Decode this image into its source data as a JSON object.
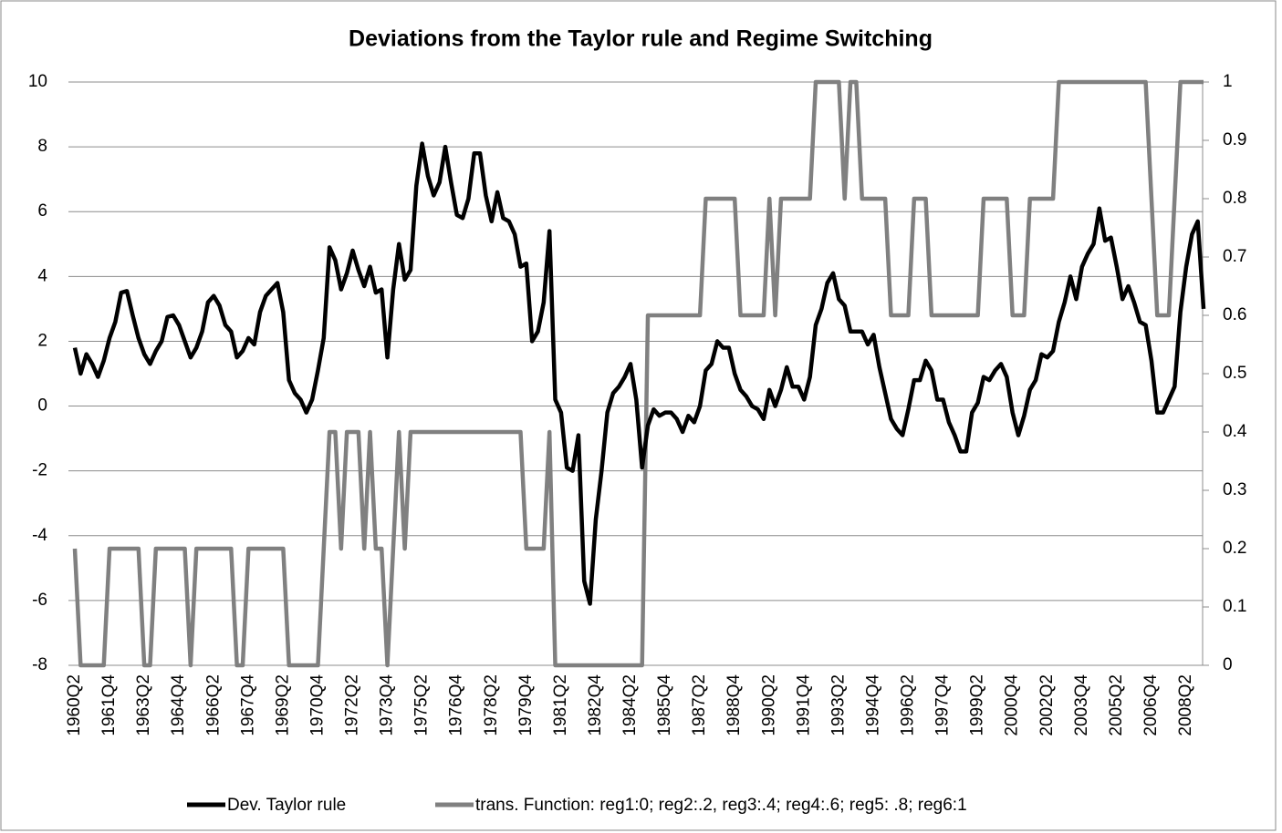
{
  "chart_data": {
    "type": "line",
    "title": "Deviations from the Taylor rule and Regime Switching",
    "categories": [
      "1960Q2",
      null,
      null,
      null,
      null,
      null,
      "1961Q4",
      null,
      null,
      null,
      null,
      null,
      "1963Q2",
      null,
      null,
      null,
      null,
      null,
      "1964Q4",
      null,
      null,
      null,
      null,
      null,
      "1966Q2",
      null,
      null,
      null,
      null,
      null,
      "1967Q4",
      null,
      null,
      null,
      null,
      null,
      "1969Q2",
      null,
      null,
      null,
      null,
      null,
      "1970Q4",
      null,
      null,
      null,
      null,
      null,
      "1972Q2",
      null,
      null,
      null,
      null,
      null,
      "1973Q4",
      null,
      null,
      null,
      null,
      null,
      "1975Q2",
      null,
      null,
      null,
      null,
      null,
      "1976Q4",
      null,
      null,
      null,
      null,
      null,
      "1978Q2",
      null,
      null,
      null,
      null,
      null,
      "1979Q4",
      null,
      null,
      null,
      null,
      null,
      "1981Q2",
      null,
      null,
      null,
      null,
      null,
      "1982Q4",
      null,
      null,
      null,
      null,
      null,
      "1984Q2",
      null,
      null,
      null,
      null,
      null,
      "1985Q4",
      null,
      null,
      null,
      null,
      null,
      "1987Q2",
      null,
      null,
      null,
      null,
      null,
      "1988Q4",
      null,
      null,
      null,
      null,
      null,
      "1990Q2",
      null,
      null,
      null,
      null,
      null,
      "1991Q4",
      null,
      null,
      null,
      null,
      null,
      "1993Q2",
      null,
      null,
      null,
      null,
      null,
      "1994Q4",
      null,
      null,
      null,
      null,
      null,
      "1996Q2",
      null,
      null,
      null,
      null,
      null,
      "1997Q4",
      null,
      null,
      null,
      null,
      null,
      "1999Q2",
      null,
      null,
      null,
      null,
      null,
      "2000Q4",
      null,
      null,
      null,
      null,
      null,
      "2002Q2",
      null,
      null,
      null,
      null,
      null,
      "2003Q4",
      null,
      null,
      null,
      null,
      null,
      "2005Q2",
      null,
      null,
      null,
      null,
      null,
      "2006Q4",
      null,
      null,
      null,
      null,
      null,
      "2008Q2",
      null,
      null,
      null
    ],
    "series": [
      {
        "name": "Dev. Taylor rule",
        "color": "#000000",
        "values": [
          1.8,
          1.0,
          1.6,
          1.3,
          0.9,
          1.4,
          2.1,
          2.6,
          3.5,
          3.55,
          2.8,
          2.1,
          1.6,
          1.3,
          1.7,
          2.0,
          2.75,
          2.8,
          2.5,
          2.0,
          1.5,
          1.8,
          2.3,
          3.2,
          3.4,
          3.1,
          2.5,
          2.3,
          1.5,
          1.7,
          2.1,
          1.9,
          2.9,
          3.4,
          3.6,
          3.8,
          2.9,
          0.8,
          0.4,
          0.2,
          -0.2,
          0.2,
          1.1,
          2.1,
          4.9,
          4.5,
          3.6,
          4.1,
          4.8,
          4.2,
          3.7,
          4.3,
          3.5,
          3.6,
          1.5,
          3.6,
          5.0,
          3.9,
          4.2,
          6.8,
          8.1,
          7.1,
          6.5,
          6.9,
          8.0,
          6.9,
          5.9,
          5.8,
          6.4,
          7.8,
          7.8,
          6.5,
          5.7,
          6.6,
          5.8,
          5.7,
          5.3,
          4.3,
          4.4,
          2.0,
          2.3,
          3.2,
          5.4,
          0.2,
          -0.2,
          -1.9,
          -2.0,
          -0.9,
          -5.4,
          -6.1,
          -3.5,
          -2.0,
          -0.2,
          0.4,
          0.6,
          0.9,
          1.3,
          0.2,
          -1.9,
          -0.6,
          -0.1,
          -0.3,
          -0.2,
          -0.2,
          -0.4,
          -0.8,
          -0.3,
          -0.5,
          0.0,
          1.1,
          1.3,
          2.0,
          1.8,
          1.8,
          1.0,
          0.5,
          0.3,
          0.0,
          -0.1,
          -0.4,
          0.5,
          0.0,
          0.5,
          1.2,
          0.6,
          0.6,
          0.2,
          0.9,
          2.5,
          3.0,
          3.8,
          4.1,
          3.3,
          3.1,
          2.3,
          2.3,
          2.3,
          1.9,
          2.2,
          1.2,
          0.4,
          -0.4,
          -0.7,
          -0.9,
          -0.1,
          0.8,
          0.8,
          1.4,
          1.1,
          0.2,
          0.2,
          -0.5,
          -0.9,
          -1.4,
          -1.4,
          -0.2,
          0.1,
          0.9,
          0.8,
          1.1,
          1.3,
          0.9,
          -0.2,
          -0.9,
          -0.3,
          0.5,
          0.8,
          1.6,
          1.5,
          1.7,
          2.6,
          3.2,
          4.0,
          3.3,
          4.3,
          4.7,
          5.0,
          6.1,
          5.1,
          5.2,
          4.3,
          3.3,
          3.7,
          3.2,
          2.6,
          2.5,
          1.4,
          -0.2,
          -0.2,
          0.2,
          0.6,
          2.9,
          4.3,
          5.3,
          5.7,
          3.0
        ]
      },
      {
        "name": "trans. Function: reg1:0; reg2:.2, reg3:.4; reg4:.6; reg5: .8; reg6:1",
        "color": "#808080",
        "axis": "y2",
        "values": [
          0.2,
          0,
          0,
          0,
          0,
          0,
          0.2,
          0.2,
          0.2,
          0.2,
          0.2,
          0.2,
          0,
          0,
          0.2,
          0.2,
          0.2,
          0.2,
          0.2,
          0.2,
          0,
          0.2,
          0.2,
          0.2,
          0.2,
          0.2,
          0.2,
          0.2,
          0,
          0,
          0.2,
          0.2,
          0.2,
          0.2,
          0.2,
          0.2,
          0.2,
          0,
          0,
          0,
          0,
          0,
          0,
          0.2,
          0.4,
          0.4,
          0.2,
          0.4,
          0.4,
          0.4,
          0.2,
          0.4,
          0.2,
          0.2,
          0,
          0.2,
          0.4,
          0.2,
          0.4,
          0.4,
          0.4,
          0.4,
          0.4,
          0.4,
          0.4,
          0.4,
          0.4,
          0.4,
          0.4,
          0.4,
          0.4,
          0.4,
          0.4,
          0.4,
          0.4,
          0.4,
          0.4,
          0.4,
          0.2,
          0.2,
          0.2,
          0.2,
          0.4,
          0,
          0,
          0,
          0,
          0,
          0,
          0,
          0,
          0,
          0,
          0,
          0,
          0,
          0,
          0,
          0,
          0.6,
          0.6,
          0.6,
          0.6,
          0.6,
          0.6,
          0.6,
          0.6,
          0.6,
          0.6,
          0.8,
          0.8,
          0.8,
          0.8,
          0.8,
          0.8,
          0.6,
          0.6,
          0.6,
          0.6,
          0.6,
          0.8,
          0.6,
          0.8,
          0.8,
          0.8,
          0.8,
          0.8,
          0.8,
          1,
          1,
          1,
          1,
          1,
          0.8,
          1,
          1,
          0.8,
          0.8,
          0.8,
          0.8,
          0.8,
          0.6,
          0.6,
          0.6,
          0.6,
          0.8,
          0.8,
          0.8,
          0.6,
          0.6,
          0.6,
          0.6,
          0.6,
          0.6,
          0.6,
          0.6,
          0.6,
          0.8,
          0.8,
          0.8,
          0.8,
          0.8,
          0.6,
          0.6,
          0.6,
          0.8,
          0.8,
          0.8,
          0.8,
          0.8,
          1,
          1,
          1,
          1,
          1,
          1,
          1,
          1,
          1,
          1,
          1,
          1,
          1,
          1,
          1,
          1,
          0.8,
          0.6,
          0.6,
          0.6,
          0.8,
          1,
          1,
          1,
          1,
          1
        ]
      }
    ],
    "ylim": [
      -8,
      10
    ],
    "yticks": [
      -8,
      -6,
      -4,
      -2,
      0,
      2,
      4,
      6,
      8,
      10
    ],
    "y2lim": [
      0,
      1
    ],
    "y2ticks": [
      0,
      0.1,
      0.2,
      0.3,
      0.4,
      0.5,
      0.6,
      0.7,
      0.8,
      0.9,
      1
    ],
    "grid": true,
    "legend": "bottom"
  }
}
